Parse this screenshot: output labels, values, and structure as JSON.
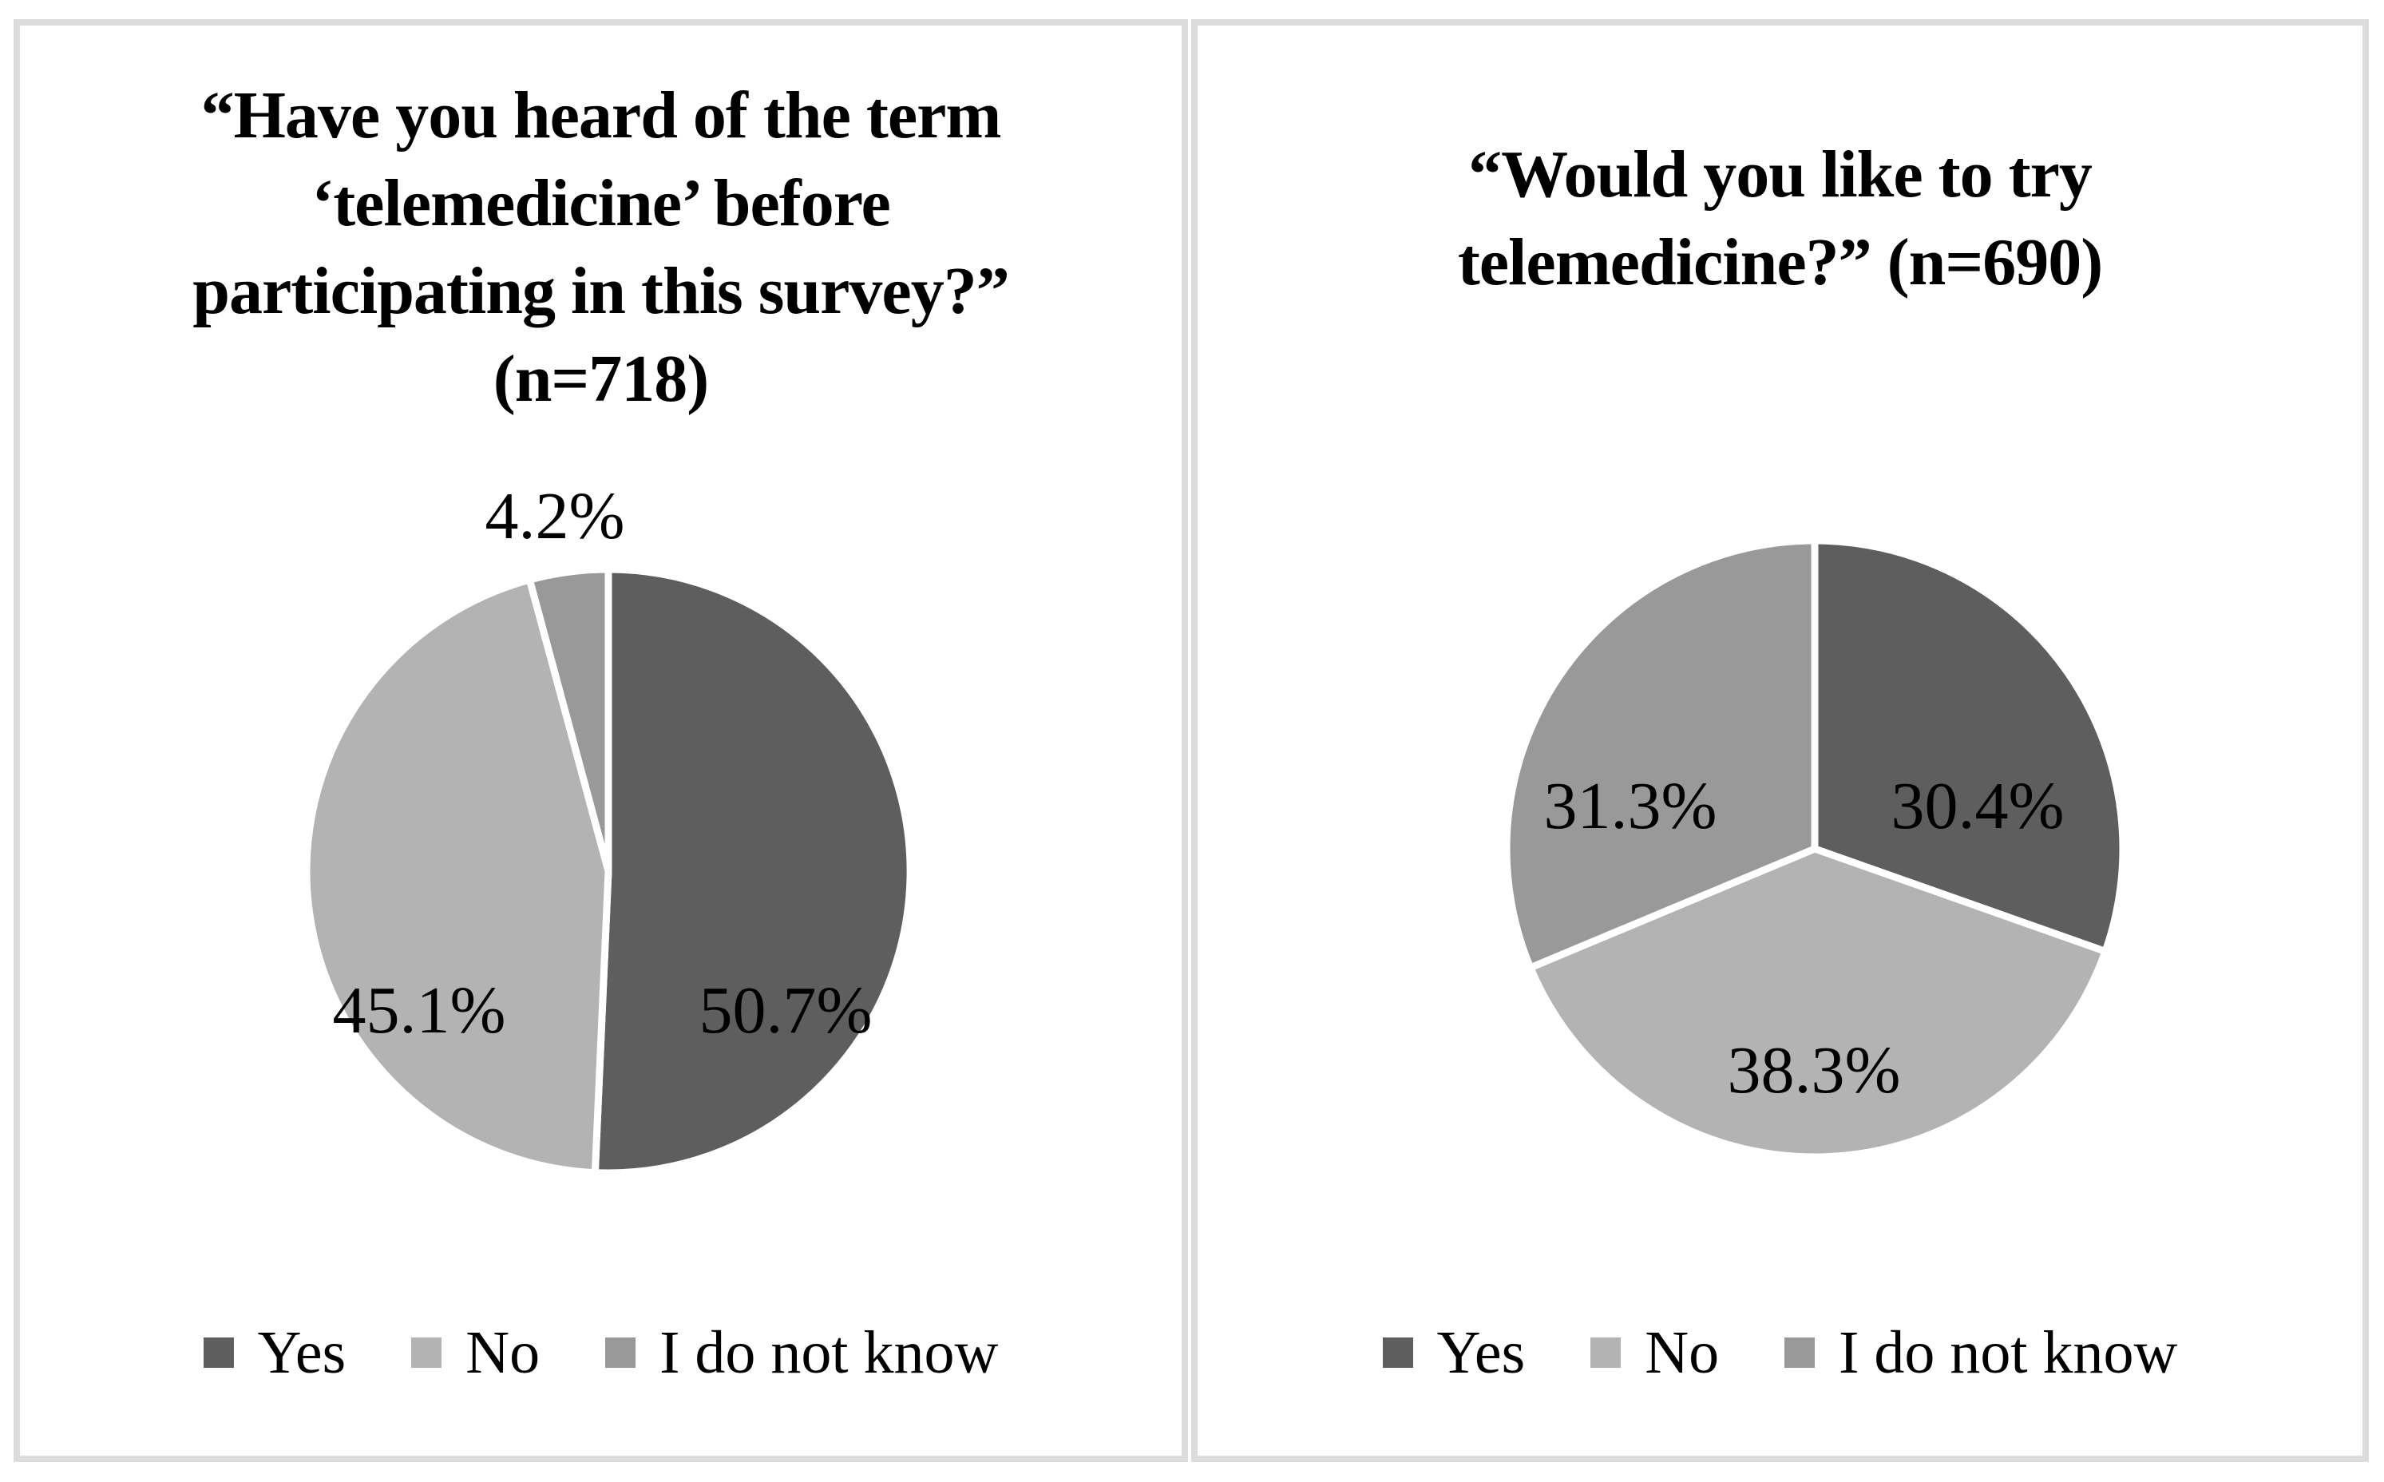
{
  "figure_type": "two-pie-chart survey figure",
  "chart_data": [
    {
      "type": "pie",
      "title": "“Have you heard of the term ‘telemedicine’ before participating in this survey?” (n=718)",
      "title_display": "“Have you heard of the term\n‘telemedicine’ before\nparticipating in this survey?”\n(n=718)",
      "n": 718,
      "start_angle_deg": 0,
      "direction": "clockwise",
      "legend_position": "bottom",
      "slices": [
        {
          "name": "Yes",
          "value": 50.7,
          "label": "50.7%",
          "color": "#5e5e5e"
        },
        {
          "name": "No",
          "value": 45.1,
          "label": "45.1%",
          "color": "#b3b3b3"
        },
        {
          "name": "I do not know",
          "value": 4.2,
          "label": "4.2%",
          "color": "#999999"
        }
      ]
    },
    {
      "type": "pie",
      "title": "“Would you like to try telemedicine?” (n=690)",
      "title_display": "“Would you like to try\ntelemedicine?” (n=690)",
      "n": 690,
      "start_angle_deg": 0,
      "direction": "clockwise",
      "legend_position": "bottom",
      "slices": [
        {
          "name": "Yes",
          "value": 30.4,
          "label": "30.4%",
          "color": "#5e5e5e"
        },
        {
          "name": "No",
          "value": 38.3,
          "label": "38.3%",
          "color": "#b3b3b3"
        },
        {
          "name": "I do not know",
          "value": 31.3,
          "label": "31.3%",
          "color": "#999999"
        }
      ]
    }
  ],
  "colors": {
    "slice_dark": "#5e5e5e",
    "slice_light": "#b3b3b3",
    "slice_medium": "#999999",
    "panel_border": "#dcdcdc",
    "text": "#000000",
    "background": "#ffffff"
  }
}
